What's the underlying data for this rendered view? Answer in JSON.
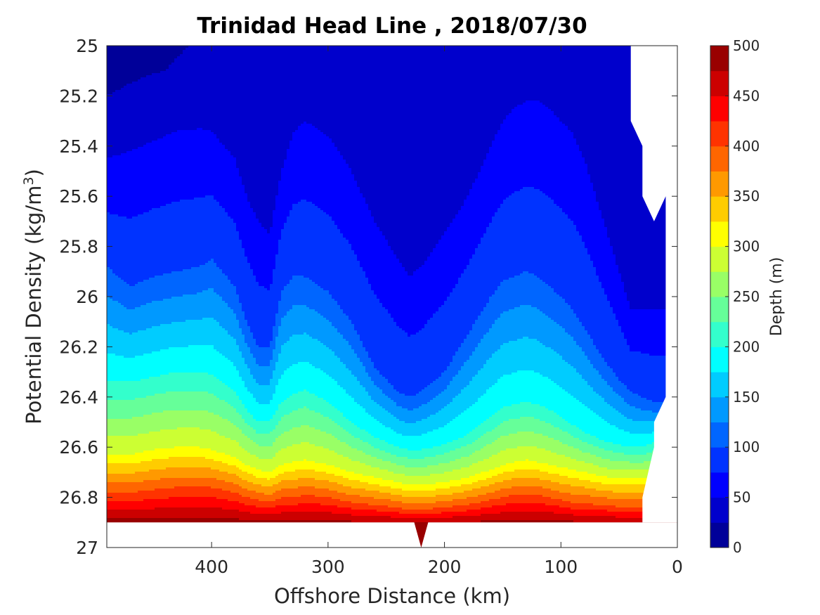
{
  "chart_data": {
    "type": "contour",
    "title": "Trinidad Head Line , 2018/07/30",
    "xlabel": "Offshore Distance (km)",
    "ylabel_main": "Potential Density (kg/m",
    "ylabel_sup": "3",
    "ylabel_close": ")",
    "xlim": [
      490,
      0
    ],
    "ylim": [
      25,
      27
    ],
    "x_reversed": true,
    "y_reversed": true,
    "x_ticks": [
      400,
      300,
      200,
      100,
      0
    ],
    "x_tick_labels": [
      "400",
      "300",
      "200",
      "100",
      "0"
    ],
    "y_ticks": [
      25,
      25.2,
      25.4,
      25.6,
      25.8,
      26,
      26.2,
      26.4,
      26.6,
      26.8,
      27
    ],
    "y_tick_labels": [
      "25",
      "25.2",
      "25.4",
      "25.6",
      "25.8",
      "26",
      "26.2",
      "26.4",
      "26.6",
      "26.8",
      "27"
    ],
    "colorbar": {
      "label": "Depth (m)",
      "range": [
        0,
        500
      ],
      "level_step": 25,
      "ticks": [
        0,
        50,
        100,
        150,
        200,
        250,
        300,
        350,
        400,
        450,
        500
      ],
      "tick_labels": [
        "0",
        "50",
        "100",
        "150",
        "200",
        "250",
        "300",
        "350",
        "400",
        "450",
        "500"
      ],
      "colormap": "jet"
    },
    "grid": false,
    "data_coverage": {
      "deepest_density_general": 26.9,
      "bottom_spike_x": 220,
      "bottom_spike_density": 27,
      "shallow_edge": [
        [
          40,
          25
        ],
        [
          40,
          25.3
        ],
        [
          30,
          25.4
        ],
        [
          30,
          25.6
        ],
        [
          20,
          25.7
        ],
        [
          10,
          25.6
        ],
        [
          10,
          26.4
        ],
        [
          20,
          26.5
        ],
        [
          20,
          26.6
        ],
        [
          30,
          26.8
        ],
        [
          30,
          26.9
        ]
      ]
    },
    "isopycnal_depth_contours": [
      {
        "depth": 25,
        "x": [
          490,
          470,
          450,
          440,
          430,
          420,
          400,
          380,
          370,
          360,
          350,
          340,
          330,
          320,
          300,
          280,
          260,
          240,
          230,
          220,
          200,
          180,
          160,
          150,
          140,
          130,
          120,
          110,
          100,
          80,
          60,
          40
        ],
        "density": [
          25.2,
          25.15,
          25.11,
          25.1,
          25.05,
          25,
          25,
          25,
          25,
          25,
          25,
          25,
          25,
          25,
          25,
          25,
          25,
          25,
          25,
          25,
          25,
          25,
          25,
          25,
          25,
          25,
          25,
          25,
          25,
          25,
          25,
          25
        ]
      },
      {
        "depth": 50,
        "x": [
          490,
          470,
          450,
          430,
          410,
          400,
          380,
          370,
          360,
          350,
          340,
          330,
          320,
          300,
          280,
          260,
          240,
          230,
          220,
          200,
          180,
          160,
          150,
          140,
          130,
          120,
          110,
          100,
          90,
          80,
          70,
          60,
          50,
          40
        ],
        "density": [
          25.45,
          25.42,
          25.38,
          25.34,
          25.33,
          25.34,
          25.45,
          25.6,
          25.7,
          25.75,
          25.5,
          25.35,
          25.3,
          25.36,
          25.5,
          25.7,
          25.85,
          25.92,
          25.88,
          25.75,
          25.6,
          25.4,
          25.3,
          25.25,
          25.22,
          25.22,
          25.25,
          25.3,
          25.35,
          25.45,
          25.6,
          25.75,
          25.9,
          26.05
        ]
      },
      {
        "depth": 100,
        "x": [
          490,
          470,
          450,
          430,
          410,
          400,
          380,
          370,
          360,
          350,
          340,
          330,
          320,
          300,
          280,
          260,
          240,
          230,
          220,
          200,
          180,
          160,
          150,
          140,
          130,
          120,
          110,
          100,
          90,
          80,
          70,
          60,
          50,
          40,
          30,
          20
        ],
        "density": [
          25.88,
          25.96,
          25.92,
          25.9,
          25.88,
          25.85,
          25.96,
          26.1,
          26.2,
          26.2,
          25.98,
          25.92,
          25.92,
          25.98,
          26.1,
          26.28,
          26.38,
          26.4,
          26.38,
          26.3,
          26.15,
          26.0,
          25.94,
          25.92,
          25.9,
          25.92,
          25.96,
          26.0,
          26.05,
          26.12,
          26.2,
          26.27,
          26.33,
          26.38,
          26.4,
          26.42
        ]
      },
      {
        "depth": 200,
        "x": [
          490,
          470,
          450,
          430,
          410,
          400,
          380,
          370,
          360,
          350,
          340,
          330,
          320,
          300,
          280,
          260,
          240,
          230,
          220,
          200,
          180,
          160,
          150,
          140,
          130,
          120,
          110,
          100,
          90,
          80,
          70,
          60,
          50,
          40,
          30,
          20
        ],
        "density": [
          26.34,
          26.34,
          26.32,
          26.3,
          26.3,
          26.31,
          26.38,
          26.45,
          26.5,
          26.5,
          26.42,
          26.39,
          26.37,
          26.42,
          26.5,
          26.56,
          26.6,
          26.61,
          26.61,
          26.59,
          26.55,
          26.48,
          26.44,
          26.43,
          26.42,
          26.43,
          26.45,
          26.48,
          26.51,
          26.54,
          26.56,
          26.58,
          26.59,
          26.6,
          26.6,
          26.58
        ]
      },
      {
        "depth": 300,
        "x": [
          490,
          470,
          450,
          430,
          410,
          400,
          380,
          370,
          360,
          350,
          340,
          330,
          320,
          300,
          280,
          260,
          240,
          230,
          220,
          200,
          180,
          160,
          150,
          140,
          130,
          120,
          110,
          100,
          90,
          80,
          70,
          60,
          50,
          40,
          30
        ],
        "density": [
          26.63,
          26.63,
          26.61,
          26.6,
          26.6,
          26.61,
          26.64,
          26.67,
          26.69,
          26.7,
          26.67,
          26.66,
          26.65,
          26.67,
          26.7,
          26.72,
          26.74,
          26.75,
          26.75,
          26.74,
          26.72,
          26.69,
          26.67,
          26.66,
          26.65,
          26.66,
          26.67,
          26.68,
          26.69,
          26.7,
          26.71,
          26.72,
          26.72,
          26.72,
          26.72
        ]
      },
      {
        "depth": 400,
        "x": [
          490,
          470,
          450,
          430,
          410,
          400,
          380,
          370,
          360,
          350,
          340,
          330,
          320,
          300,
          280,
          260,
          240,
          230,
          220,
          200,
          180,
          160,
          150,
          140,
          130,
          120,
          110,
          100,
          90,
          80,
          70,
          60,
          50,
          40,
          30
        ],
        "density": [
          26.78,
          26.78,
          26.77,
          26.76,
          26.76,
          26.76,
          26.78,
          26.8,
          26.81,
          26.82,
          26.8,
          26.8,
          26.79,
          26.8,
          26.82,
          26.83,
          26.84,
          26.85,
          26.85,
          26.84,
          26.83,
          26.81,
          26.8,
          26.79,
          26.79,
          26.79,
          26.8,
          26.81,
          26.82,
          26.82,
          26.83,
          26.83,
          26.84,
          26.84,
          26.84
        ]
      }
    ]
  },
  "colors": {
    "background": "#ffffff",
    "axis": "#262626",
    "title": "#000000"
  }
}
